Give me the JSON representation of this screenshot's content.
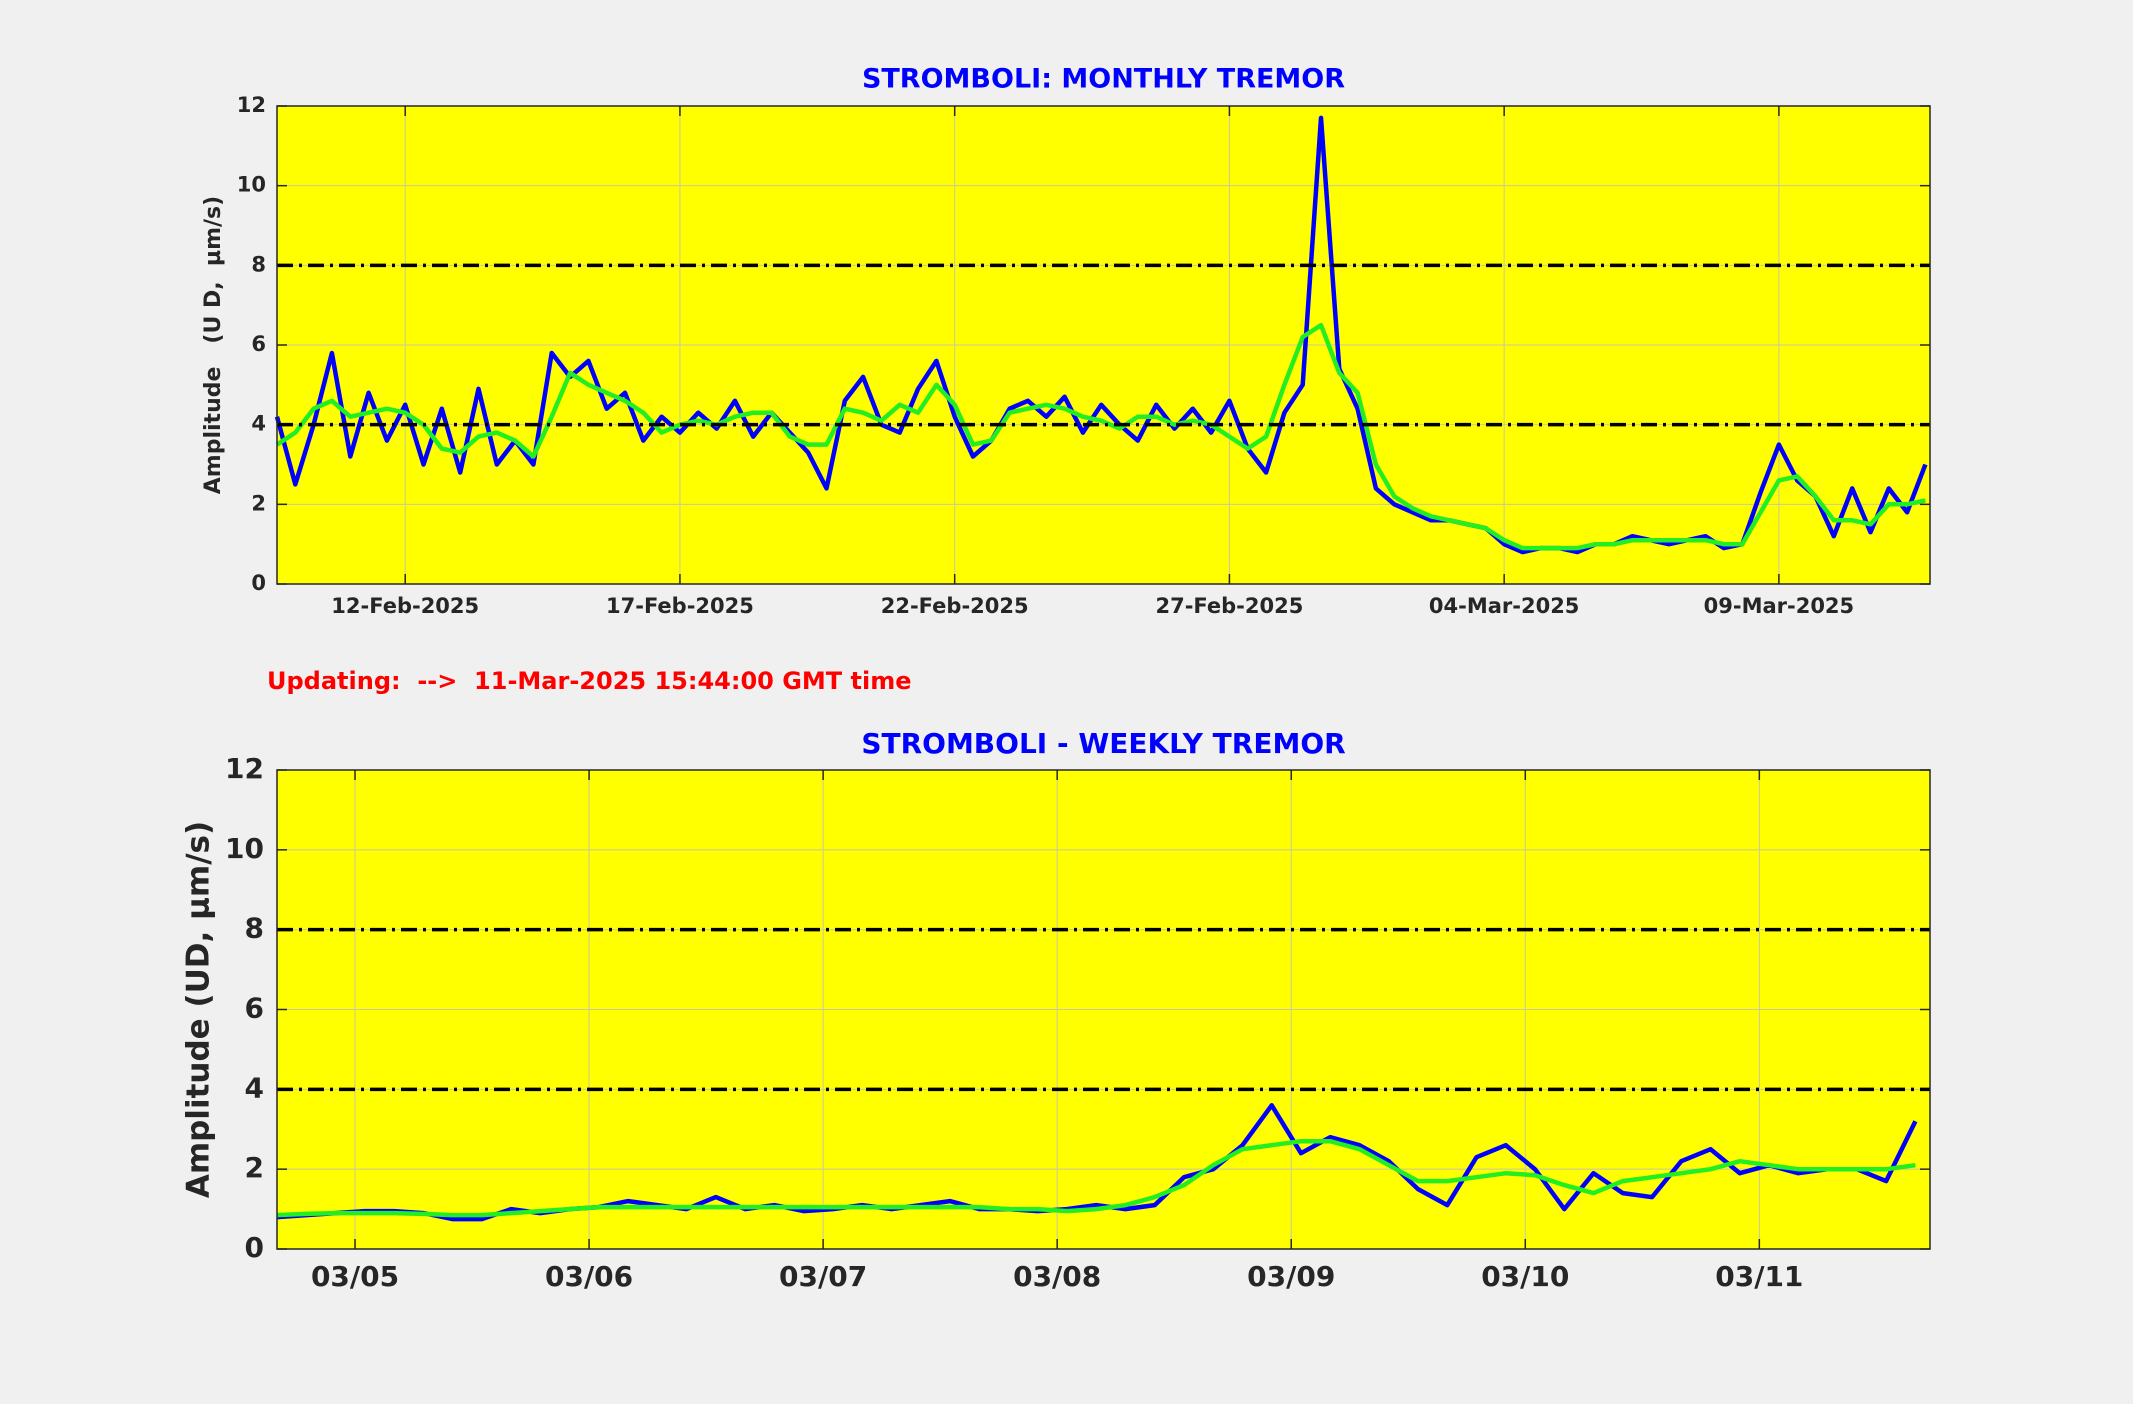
{
  "chart_data": [
    {
      "type": "line",
      "title": "STROMBOLI: MONTHLY TREMOR",
      "ylabel": "Amplitude   (U D,  µm/s)",
      "x": [
        "2025-02-09 16:00",
        "2025-02-10 00:00",
        "2025-02-10 08:00",
        "2025-02-10 16:00",
        "2025-02-11 00:00",
        "2025-02-11 08:00",
        "2025-02-11 16:00",
        "2025-02-12 00:00",
        "2025-02-12 08:00",
        "2025-02-12 16:00",
        "2025-02-13 00:00",
        "2025-02-13 08:00",
        "2025-02-13 16:00",
        "2025-02-14 00:00",
        "2025-02-14 08:00",
        "2025-02-14 16:00",
        "2025-02-15 00:00",
        "2025-02-15 08:00",
        "2025-02-15 16:00",
        "2025-02-16 00:00",
        "2025-02-16 08:00",
        "2025-02-16 16:00",
        "2025-02-17 00:00",
        "2025-02-17 08:00",
        "2025-02-17 16:00",
        "2025-02-18 00:00",
        "2025-02-18 08:00",
        "2025-02-18 16:00",
        "2025-02-19 00:00",
        "2025-02-19 08:00",
        "2025-02-19 16:00",
        "2025-02-20 00:00",
        "2025-02-20 08:00",
        "2025-02-20 16:00",
        "2025-02-21 00:00",
        "2025-02-21 08:00",
        "2025-02-21 16:00",
        "2025-02-22 00:00",
        "2025-02-22 08:00",
        "2025-02-22 16:00",
        "2025-02-23 00:00",
        "2025-02-23 08:00",
        "2025-02-23 16:00",
        "2025-02-24 00:00",
        "2025-02-24 08:00",
        "2025-02-24 16:00",
        "2025-02-25 00:00",
        "2025-02-25 08:00",
        "2025-02-25 16:00",
        "2025-02-26 00:00",
        "2025-02-26 08:00",
        "2025-02-26 16:00",
        "2025-02-27 00:00",
        "2025-02-27 08:00",
        "2025-02-27 16:00",
        "2025-02-28 00:00",
        "2025-02-28 08:00",
        "2025-02-28 16:00",
        "2025-03-01 00:00",
        "2025-03-01 08:00",
        "2025-03-01 16:00",
        "2025-03-02 00:00",
        "2025-03-02 08:00",
        "2025-03-02 16:00",
        "2025-03-03 00:00",
        "2025-03-03 08:00",
        "2025-03-03 16:00",
        "2025-03-04 00:00",
        "2025-03-04 08:00",
        "2025-03-04 16:00",
        "2025-03-05 00:00",
        "2025-03-05 08:00",
        "2025-03-05 16:00",
        "2025-03-06 00:00",
        "2025-03-06 08:00",
        "2025-03-06 16:00",
        "2025-03-07 00:00",
        "2025-03-07 08:00",
        "2025-03-07 16:00",
        "2025-03-08 00:00",
        "2025-03-08 08:00",
        "2025-03-08 16:00",
        "2025-03-09 00:00",
        "2025-03-09 08:00",
        "2025-03-09 16:00",
        "2025-03-10 00:00",
        "2025-03-10 08:00",
        "2025-03-10 16:00",
        "2025-03-11 00:00",
        "2025-03-11 08:00",
        "2025-03-11 16:00"
      ],
      "series": [
        {
          "color": "#0000ff",
          "values": [
            4.2,
            2.5,
            4.0,
            5.8,
            3.2,
            4.8,
            3.6,
            4.5,
            3.0,
            4.4,
            2.8,
            4.9,
            3.0,
            3.6,
            3.0,
            5.8,
            5.2,
            5.6,
            4.4,
            4.8,
            3.6,
            4.2,
            3.8,
            4.3,
            3.9,
            4.6,
            3.7,
            4.3,
            3.8,
            3.3,
            2.4,
            4.6,
            5.2,
            4.0,
            3.8,
            4.9,
            5.6,
            4.2,
            3.2,
            3.6,
            4.4,
            4.6,
            4.2,
            4.7,
            3.8,
            4.5,
            4.0,
            3.6,
            4.5,
            3.9,
            4.4,
            3.8,
            4.6,
            3.4,
            2.8,
            4.3,
            5.0,
            11.7,
            5.4,
            4.4,
            2.4,
            2.0,
            1.8,
            1.6,
            1.6,
            1.5,
            1.4,
            1.0,
            0.8,
            0.9,
            0.9,
            0.8,
            1.0,
            1.0,
            1.2,
            1.1,
            1.0,
            1.1,
            1.2,
            0.9,
            1.0,
            2.3,
            3.5,
            2.6,
            2.2,
            1.2,
            2.4,
            1.3,
            2.4,
            1.8,
            3.0
          ]
        },
        {
          "color": "#22ee22",
          "values": [
            3.5,
            3.8,
            4.4,
            4.6,
            4.2,
            4.3,
            4.4,
            4.3,
            4.0,
            3.4,
            3.3,
            3.7,
            3.8,
            3.6,
            3.2,
            4.2,
            5.3,
            5.0,
            4.8,
            4.6,
            4.3,
            3.8,
            4.0,
            4.1,
            4.0,
            4.2,
            4.3,
            4.3,
            3.7,
            3.5,
            3.5,
            4.4,
            4.3,
            4.1,
            4.5,
            4.3,
            5.0,
            4.5,
            3.5,
            3.6,
            4.3,
            4.4,
            4.5,
            4.4,
            4.2,
            4.1,
            3.9,
            4.2,
            4.2,
            4.0,
            4.1,
            4.0,
            3.7,
            3.4,
            3.7,
            5.0,
            6.2,
            6.5,
            5.3,
            4.8,
            3.0,
            2.2,
            1.9,
            1.7,
            1.6,
            1.5,
            1.4,
            1.1,
            0.9,
            0.9,
            0.9,
            0.9,
            1.0,
            1.0,
            1.1,
            1.1,
            1.1,
            1.1,
            1.1,
            1.0,
            1.0,
            1.8,
            2.6,
            2.7,
            2.2,
            1.6,
            1.6,
            1.5,
            2.0,
            2.0,
            2.1
          ]
        }
      ],
      "xlim": [
        "2025-02-09 16:00",
        "2025-03-11 18:00"
      ],
      "xticks": [
        {
          "value": "2025-02-12 00:00",
          "label": "12-Feb-2025"
        },
        {
          "value": "2025-02-17 00:00",
          "label": "17-Feb-2025"
        },
        {
          "value": "2025-02-22 00:00",
          "label": "22-Feb-2025"
        },
        {
          "value": "2025-02-27 00:00",
          "label": "27-Feb-2025"
        },
        {
          "value": "2025-03-04 00:00",
          "label": "04-Mar-2025"
        },
        {
          "value": "2025-03-09 00:00",
          "label": "09-Mar-2025"
        }
      ],
      "ylim": [
        0,
        12
      ],
      "yticks": [
        0,
        2,
        4,
        6,
        8,
        10,
        12
      ],
      "grid": true,
      "thresholds": [
        4,
        8
      ],
      "threshold_color": "#000000"
    },
    {
      "type": "line",
      "title": "STROMBOLI - WEEKLY TREMOR",
      "ylabel": "Amplitude (UD, µm/s)",
      "x": [
        "2025-03-04 16:00",
        "2025-03-04 19:00",
        "2025-03-04 22:00",
        "2025-03-05 01:00",
        "2025-03-05 04:00",
        "2025-03-05 07:00",
        "2025-03-05 10:00",
        "2025-03-05 13:00",
        "2025-03-05 16:00",
        "2025-03-05 19:00",
        "2025-03-05 22:00",
        "2025-03-06 01:00",
        "2025-03-06 04:00",
        "2025-03-06 07:00",
        "2025-03-06 10:00",
        "2025-03-06 13:00",
        "2025-03-06 16:00",
        "2025-03-06 19:00",
        "2025-03-06 22:00",
        "2025-03-07 01:00",
        "2025-03-07 04:00",
        "2025-03-07 07:00",
        "2025-03-07 10:00",
        "2025-03-07 13:00",
        "2025-03-07 16:00",
        "2025-03-07 19:00",
        "2025-03-07 22:00",
        "2025-03-08 01:00",
        "2025-03-08 04:00",
        "2025-03-08 07:00",
        "2025-03-08 10:00",
        "2025-03-08 13:00",
        "2025-03-08 16:00",
        "2025-03-08 19:00",
        "2025-03-08 22:00",
        "2025-03-09 01:00",
        "2025-03-09 04:00",
        "2025-03-09 07:00",
        "2025-03-09 10:00",
        "2025-03-09 13:00",
        "2025-03-09 16:00",
        "2025-03-09 19:00",
        "2025-03-09 22:00",
        "2025-03-10 01:00",
        "2025-03-10 04:00",
        "2025-03-10 07:00",
        "2025-03-10 10:00",
        "2025-03-10 13:00",
        "2025-03-10 16:00",
        "2025-03-10 19:00",
        "2025-03-10 22:00",
        "2025-03-11 01:00",
        "2025-03-11 04:00",
        "2025-03-11 07:00",
        "2025-03-11 10:00",
        "2025-03-11 13:00",
        "2025-03-11 16:00"
      ],
      "series": [
        {
          "color": "#0000ff",
          "values": [
            0.8,
            0.85,
            0.9,
            0.95,
            0.95,
            0.9,
            0.75,
            0.75,
            1.0,
            0.9,
            1.0,
            1.05,
            1.2,
            1.1,
            1.0,
            1.3,
            1.0,
            1.1,
            0.95,
            1.0,
            1.1,
            1.0,
            1.1,
            1.2,
            1.0,
            1.0,
            0.95,
            1.0,
            1.1,
            1.0,
            1.1,
            1.8,
            2.0,
            2.6,
            3.6,
            2.4,
            2.8,
            2.6,
            2.2,
            1.5,
            1.1,
            2.3,
            2.6,
            2.0,
            1.0,
            1.9,
            1.4,
            1.3,
            2.2,
            2.5,
            1.9,
            2.1,
            1.9,
            2.0,
            2.0,
            1.7,
            3.2
          ]
        },
        {
          "color": "#22ee22",
          "values": [
            0.85,
            0.88,
            0.9,
            0.9,
            0.9,
            0.88,
            0.85,
            0.85,
            0.9,
            0.95,
            1.0,
            1.05,
            1.05,
            1.05,
            1.05,
            1.05,
            1.05,
            1.05,
            1.05,
            1.05,
            1.05,
            1.05,
            1.05,
            1.05,
            1.05,
            1.0,
            1.0,
            0.95,
            1.0,
            1.1,
            1.3,
            1.6,
            2.1,
            2.5,
            2.6,
            2.7,
            2.7,
            2.5,
            2.1,
            1.7,
            1.7,
            1.8,
            1.9,
            1.85,
            1.6,
            1.4,
            1.7,
            1.8,
            1.9,
            2.0,
            2.2,
            2.1,
            2.0,
            2.0,
            2.0,
            2.0,
            2.1
          ]
        }
      ],
      "xlim": [
        "2025-03-04 16:00",
        "2025-03-11 17:30"
      ],
      "xticks": [
        {
          "value": "2025-03-05 00:00",
          "label": "03/05"
        },
        {
          "value": "2025-03-06 00:00",
          "label": "03/06"
        },
        {
          "value": "2025-03-07 00:00",
          "label": "03/07"
        },
        {
          "value": "2025-03-08 00:00",
          "label": "03/08"
        },
        {
          "value": "2025-03-09 00:00",
          "label": "03/09"
        },
        {
          "value": "2025-03-10 00:00",
          "label": "03/10"
        },
        {
          "value": "2025-03-11 00:00",
          "label": "03/11"
        }
      ],
      "ylim": [
        0,
        12
      ],
      "yticks": [
        0,
        2,
        4,
        6,
        8,
        10,
        12
      ],
      "grid": true,
      "thresholds": [
        4,
        8
      ],
      "threshold_color": "#000000"
    }
  ],
  "updated": "Updating:  -->  11-Mar-2025 15:44:00 GMT time"
}
